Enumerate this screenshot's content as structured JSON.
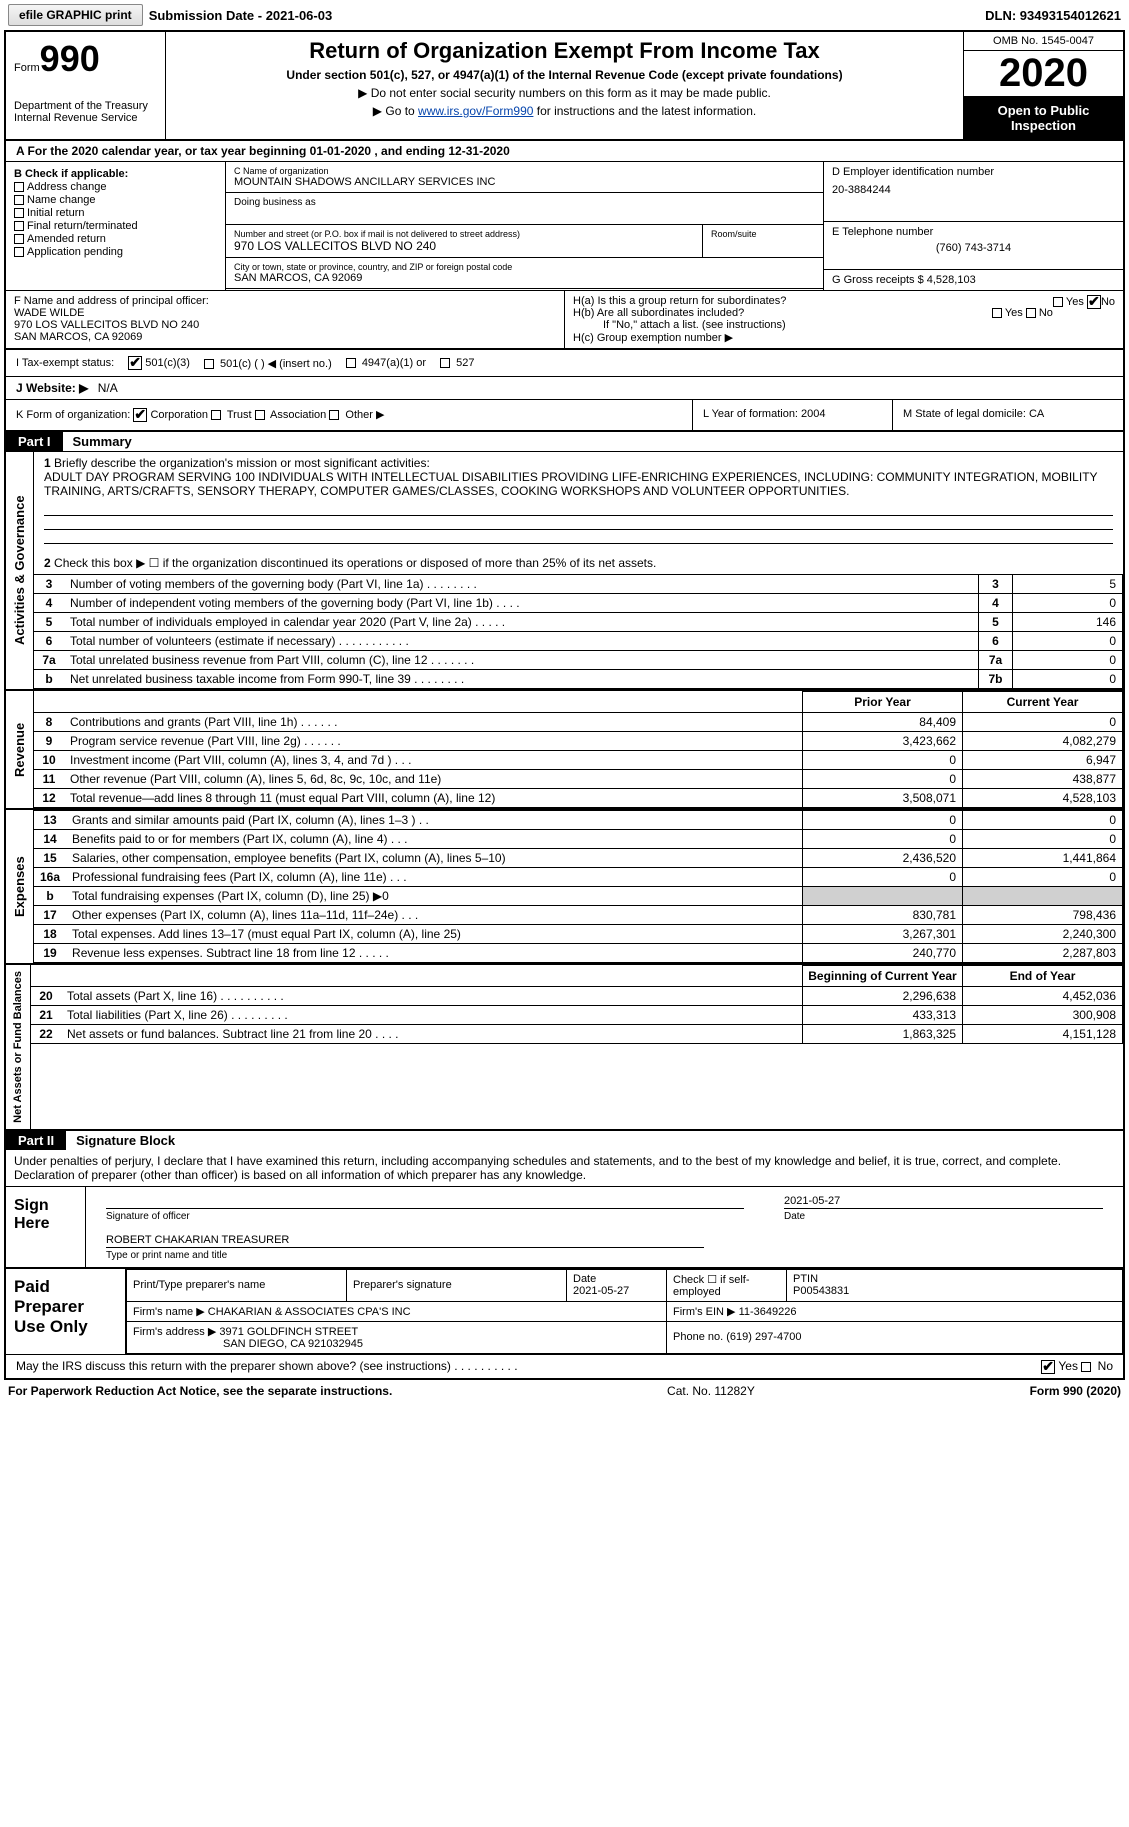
{
  "efile_button": "efile GRAPHIC print",
  "submission_date_label": "Submission Date - 2021-06-03",
  "dln": "DLN: 93493154012621",
  "omb": "OMB No. 1545-0047",
  "form_label": "Form",
  "form_number": "990",
  "dept": "Department of the Treasury\nInternal Revenue Service",
  "title": "Return of Organization Exempt From Income Tax",
  "subtitle": "Under section 501(c), 527, or 4947(a)(1) of the Internal Revenue Code (except private foundations)",
  "note_ssn": "▶ Do not enter social security numbers on this form as it may be made public.",
  "note_goto_pre": "▶ Go to ",
  "note_goto_link": "www.irs.gov/Form990",
  "note_goto_post": " for instructions and the latest information.",
  "year": "2020",
  "open_insp": "Open to Public Inspection",
  "tax_year_a": "A For the 2020 calendar year, or tax year beginning 01-01-2020    , and ending 12-31-2020",
  "b_label": "B Check if applicable:",
  "b_items": [
    "Address change",
    "Name change",
    "Initial return",
    "Final return/terminated",
    "Amended return",
    "Application pending"
  ],
  "c_name_label": "C Name of organization",
  "c_name": "MOUNTAIN SHADOWS ANCILLARY SERVICES INC",
  "dba_label": "Doing business as",
  "addr_label": "Number and street (or P.O. box if mail is not delivered to street address)",
  "room_label": "Room/suite",
  "addr": "970 LOS VALLECITOS BLVD NO 240",
  "city_label": "City or town, state or province, country, and ZIP or foreign postal code",
  "city": "SAN MARCOS, CA  92069",
  "d_label": "D Employer identification number",
  "d_val": "20-3884244",
  "e_label": "E Telephone number",
  "e_val": "(760) 743-3714",
  "g_label": "G Gross receipts $ 4,528,103",
  "f_label": "F  Name and address of principal officer:",
  "f_name": "WADE WILDE",
  "f_addr": "970 LOS VALLECITOS BLVD NO 240",
  "f_city": "SAN MARCOS, CA  92069",
  "h_a": "H(a)  Is this a group return for subordinates?",
  "h_b": "H(b)  Are all subordinates included?",
  "h_note": "If \"No,\" attach a list. (see instructions)",
  "h_c": "H(c)  Group exemption number ▶",
  "yes": "Yes",
  "no": "No",
  "i_label": "I    Tax-exempt status:",
  "i_501c3": "501(c)(3)",
  "i_501c": "501(c) (  ) ◀ (insert no.)",
  "i_4947": "4947(a)(1) or",
  "i_527": "527",
  "j_label": "J    Website: ▶",
  "j_val": "N/A",
  "k_label": "K Form of organization:",
  "k_items": [
    "Corporation",
    "Trust",
    "Association",
    "Other ▶"
  ],
  "l_label": "L Year of formation: 2004",
  "m_label": "M State of legal domicile: CA",
  "part1": "Part I",
  "part1_title": "Summary",
  "line1_label": "1",
  "line1_text": "Briefly describe the organization's mission or most significant activities:",
  "line1_desc": "ADULT DAY PROGRAM SERVING 100 INDIVIDUALS WITH INTELLECTUAL DISABILITIES PROVIDING LIFE-ENRICHING EXPERIENCES, INCLUDING: COMMUNITY INTEGRATION, MOBILITY TRAINING, ARTS/CRAFTS, SENSORY THERAPY, COMPUTER GAMES/CLASSES, COOKING WORKSHOPS AND VOLUNTEER OPPORTUNITIES.",
  "side_gov": "Activities & Governance",
  "side_rev": "Revenue",
  "side_exp": "Expenses",
  "side_net": "Net Assets or Fund Balances",
  "line2": "Check this box ▶ ☐  if the organization discontinued its operations or disposed of more than 25% of its net assets.",
  "gov_rows": [
    {
      "n": "3",
      "d": "Number of voting members of the governing body (Part VI, line 1a)   .   .   .   .   .   .   .   .",
      "b": "3",
      "v": "5"
    },
    {
      "n": "4",
      "d": "Number of independent voting members of the governing body (Part VI, line 1b)   .   .   .   .",
      "b": "4",
      "v": "0"
    },
    {
      "n": "5",
      "d": "Total number of individuals employed in calendar year 2020 (Part V, line 2a)   .   .   .   .   .",
      "b": "5",
      "v": "146"
    },
    {
      "n": "6",
      "d": "Total number of volunteers (estimate if necessary)   .   .   .   .   .   .   .   .   .   .   .",
      "b": "6",
      "v": "0"
    },
    {
      "n": "7a",
      "d": "Total unrelated business revenue from Part VIII, column (C), line 12   .   .   .   .   .   .   .",
      "b": "7a",
      "v": "0"
    },
    {
      "n": "b",
      "d": "Net unrelated business taxable income from Form 990-T, line 39   .   .   .   .   .   .   .   .",
      "b": "7b",
      "v": "0"
    }
  ],
  "prior_year": "Prior Year",
  "current_year": "Current Year",
  "rev_rows": [
    {
      "n": "8",
      "d": "Contributions and grants (Part VIII, line 1h)   .   .   .   .   .   .",
      "p": "84,409",
      "c": "0"
    },
    {
      "n": "9",
      "d": "Program service revenue (Part VIII, line 2g)   .   .   .   .   .   .",
      "p": "3,423,662",
      "c": "4,082,279"
    },
    {
      "n": "10",
      "d": "Investment income (Part VIII, column (A), lines 3, 4, and 7d )   .   .   .",
      "p": "0",
      "c": "6,947"
    },
    {
      "n": "11",
      "d": "Other revenue (Part VIII, column (A), lines 5, 6d, 8c, 9c, 10c, and 11e)",
      "p": "0",
      "c": "438,877"
    },
    {
      "n": "12",
      "d": "Total revenue—add lines 8 through 11 (must equal Part VIII, column (A), line 12)",
      "p": "3,508,071",
      "c": "4,528,103"
    }
  ],
  "exp_rows": [
    {
      "n": "13",
      "d": "Grants and similar amounts paid (Part IX, column (A), lines 1–3 )   .   .",
      "p": "0",
      "c": "0"
    },
    {
      "n": "14",
      "d": "Benefits paid to or for members (Part IX, column (A), line 4)   .   .   .",
      "p": "0",
      "c": "0"
    },
    {
      "n": "15",
      "d": "Salaries, other compensation, employee benefits (Part IX, column (A), lines 5–10)",
      "p": "2,436,520",
      "c": "1,441,864"
    },
    {
      "n": "16a",
      "d": "Professional fundraising fees (Part IX, column (A), line 11e)   .   .   .",
      "p": "0",
      "c": "0"
    },
    {
      "n": "b",
      "d": "Total fundraising expenses (Part IX, column (D), line 25) ▶0",
      "p": "shade",
      "c": "shade"
    },
    {
      "n": "17",
      "d": "Other expenses (Part IX, column (A), lines 11a–11d, 11f–24e)   .   .   .",
      "p": "830,781",
      "c": "798,436"
    },
    {
      "n": "18",
      "d": "Total expenses. Add lines 13–17 (must equal Part IX, column (A), line 25)",
      "p": "3,267,301",
      "c": "2,240,300"
    },
    {
      "n": "19",
      "d": "Revenue less expenses. Subtract line 18 from line 12   .   .   .   .   .",
      "p": "240,770",
      "c": "2,287,803"
    }
  ],
  "beg_year": "Beginning of Current Year",
  "end_year": "End of Year",
  "net_rows": [
    {
      "n": "20",
      "d": "Total assets (Part X, line 16)   .   .   .   .   .   .   .   .   .   .",
      "p": "2,296,638",
      "c": "4,452,036"
    },
    {
      "n": "21",
      "d": "Total liabilities (Part X, line 26)   .   .   .   .   .   .   .   .   .",
      "p": "433,313",
      "c": "300,908"
    },
    {
      "n": "22",
      "d": "Net assets or fund balances. Subtract line 21 from line 20   .   .   .   .",
      "p": "1,863,325",
      "c": "4,151,128"
    }
  ],
  "part2": "Part II",
  "part2_title": "Signature Block",
  "perjury": "Under penalties of perjury, I declare that I have examined this return, including accompanying schedules and statements, and to the best of my knowledge and belief, it is true, correct, and complete. Declaration of preparer (other than officer) is based on all information of which preparer has any knowledge.",
  "sign_here": "Sign Here",
  "sig_date": "2021-05-27",
  "sig_officer_lbl": "Signature of officer",
  "sig_date_lbl": "Date",
  "sig_name": "ROBERT CHAKARIAN TREASURER",
  "sig_name_lbl": "Type or print name and title",
  "paid_label": "Paid Preparer Use Only",
  "prep_name_lbl": "Print/Type preparer's name",
  "prep_sig_lbl": "Preparer's signature",
  "prep_date_lbl": "Date",
  "prep_date": "2021-05-27",
  "prep_self": "Check ☐  if self-employed",
  "ptin_lbl": "PTIN",
  "ptin": "P00543831",
  "firm_name_lbl": "Firm's name      ▶",
  "firm_name": "CHAKARIAN & ASSOCIATES CPA'S INC",
  "firm_ein_lbl": "Firm's EIN ▶",
  "firm_ein": "11-3649226",
  "firm_addr_lbl": "Firm's address ▶",
  "firm_addr": "3971 GOLDFINCH STREET",
  "firm_city": "SAN DIEGO, CA  921032945",
  "firm_phone_lbl": "Phone no.",
  "firm_phone": "(619) 297-4700",
  "discuss": "May the IRS discuss this return with the preparer shown above? (see instructions)   .   .   .   .   .   .   .   .   .   .",
  "paperwork": "For Paperwork Reduction Act Notice, see the separate instructions.",
  "cat": "Cat. No. 11282Y",
  "form_footer": "Form 990 (2020)"
}
